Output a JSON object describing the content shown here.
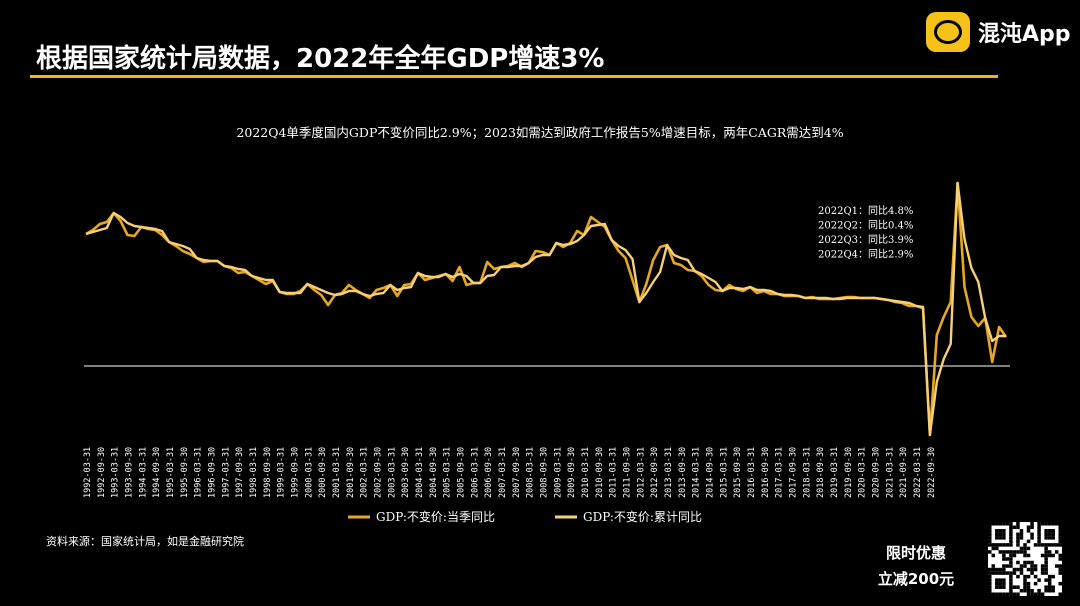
{
  "header": {
    "title": "根据国家统计局数据，2022年全年GDP增速3%"
  },
  "brand": {
    "name": "混沌App",
    "logo_icon": "chat-bubble-icon"
  },
  "footer": {
    "source": "资料来源：国家统计局，如是金融研究院",
    "promo_line1": "限时优惠",
    "promo_line2": "立减200元"
  },
  "colors": {
    "background": "#000000",
    "accent": "#f2b51d",
    "series_quarter": "#e6a822",
    "series_cumulative": "#f7cf76",
    "baseline": "#ffffff"
  },
  "chart_data": {
    "type": "line",
    "title": "2022Q4单季度国内GDP不变价同比2.9%；2023如需达到政府工作报告5%增速目标，两年CAGR需达到4%",
    "xlabel": "",
    "ylabel": "",
    "grid": false,
    "legend_position": "bottom-center",
    "annotations": [
      "2022Q1：同比4.8%",
      "2022Q2：同比0.4%",
      "2022Q3：同比3.9%",
      "2022Q4：同比2.9%"
    ],
    "x_tick_labels": [
      "1992-03-31",
      "1992-09-30",
      "1993-03-31",
      "1993-09-30",
      "1994-03-31",
      "1994-09-30",
      "1995-03-31",
      "1995-09-30",
      "1996-03-31",
      "1996-09-30",
      "1997-03-31",
      "1997-09-30",
      "1998-03-31",
      "1998-09-30",
      "1999-03-31",
      "1999-09-30",
      "2000-03-31",
      "2000-09-30",
      "2001-03-31",
      "2001-09-30",
      "2002-03-31",
      "2002-09-30",
      "2003-03-31",
      "2003-09-30",
      "2004-03-31",
      "2004-09-30",
      "2005-03-31",
      "2005-09-30",
      "2006-03-31",
      "2006-09-30",
      "2007-03-31",
      "2007-09-30",
      "2008-03-31",
      "2008-09-30",
      "2009-03-31",
      "2009-09-30",
      "2010-03-31",
      "2010-09-30",
      "2011-03-31",
      "2011-09-30",
      "2012-03-31",
      "2012-09-30",
      "2013-03-31",
      "2013-09-30",
      "2014-03-31",
      "2014-09-30",
      "2015-03-31",
      "2015-09-30",
      "2016-03-31",
      "2016-09-30",
      "2017-03-31",
      "2017-09-30",
      "2018-03-31",
      "2018-09-30",
      "2019-03-31",
      "2019-09-30",
      "2020-03-31",
      "2020-09-30",
      "2021-03-31",
      "2021-09-30",
      "2022-03-31",
      "2022-09-30"
    ],
    "ylim": [
      -7,
      20
    ],
    "series": [
      {
        "name": "GDP:不变价:当季同比",
        "values": [
          13.2,
          13.6,
          14.2,
          14.4,
          15.3,
          14.5,
          13.1,
          13.0,
          13.9,
          13.7,
          13.6,
          13.1,
          12.4,
          12.0,
          11.5,
          11.2,
          10.8,
          10.4,
          10.5,
          10.5,
          10.0,
          9.8,
          9.3,
          9.4,
          9.0,
          8.6,
          8.2,
          8.5,
          7.4,
          7.2,
          7.2,
          7.5,
          8.2,
          7.6,
          7.1,
          6.1,
          7.1,
          7.3,
          8.1,
          7.6,
          7.2,
          6.8,
          7.6,
          7.8,
          8.1,
          7.0,
          8.1,
          8.2,
          9.3,
          8.6,
          8.8,
          9.0,
          9.2,
          8.5,
          9.9,
          8.1,
          8.3,
          8.3,
          10.4,
          9.7,
          9.9,
          10.0,
          10.3,
          9.9,
          10.3,
          11.5,
          11.4,
          11.1,
          12.3,
          11.9,
          12.3,
          13.5,
          13.1,
          14.9,
          14.4,
          13.9,
          12.6,
          11.5,
          10.8,
          8.6,
          6.4,
          8.2,
          10.6,
          11.9,
          12.1,
          10.3,
          10.1,
          9.6,
          9.5,
          9.0,
          8.1,
          7.6,
          7.5,
          8.1,
          7.7,
          7.5,
          7.9,
          7.3,
          7.5,
          7.2,
          7.2,
          7.0,
          7.0,
          7.0,
          6.8,
          6.9,
          6.7,
          6.7,
          6.7,
          6.8,
          6.9,
          6.9,
          6.8,
          6.8,
          6.8,
          6.7,
          6.6,
          6.4,
          6.3,
          6.0,
          6.0,
          5.8,
          -6.9,
          3.1,
          4.9,
          6.4,
          18.3,
          7.9,
          4.9,
          4.0,
          4.8,
          0.4,
          3.9,
          2.9
        ]
      },
      {
        "name": "GDP:不变价:累计同比",
        "values": [
          13.2,
          13.4,
          13.6,
          13.8,
          15.3,
          14.9,
          14.3,
          14.0,
          13.9,
          13.8,
          13.7,
          13.5,
          12.4,
          12.2,
          12.0,
          11.7,
          10.8,
          10.6,
          10.5,
          10.5,
          10.0,
          9.9,
          9.7,
          9.6,
          9.0,
          8.8,
          8.6,
          8.6,
          7.4,
          7.3,
          7.3,
          7.3,
          8.2,
          7.9,
          7.6,
          7.3,
          7.1,
          7.2,
          7.5,
          7.5,
          7.2,
          7.0,
          7.2,
          7.3,
          8.1,
          7.6,
          7.8,
          7.9,
          9.3,
          9.0,
          8.9,
          8.9,
          9.2,
          8.9,
          9.2,
          9.0,
          8.3,
          8.3,
          9.0,
          9.1,
          9.9,
          9.9,
          10.0,
          10.0,
          10.3,
          10.9,
          11.1,
          11.1,
          12.3,
          12.1,
          12.2,
          12.5,
          13.1,
          14.0,
          14.1,
          14.2,
          12.6,
          12.0,
          11.6,
          10.7,
          6.4,
          7.3,
          8.4,
          9.4,
          12.1,
          11.1,
          10.8,
          10.6,
          9.5,
          9.2,
          8.8,
          8.4,
          7.5,
          7.8,
          7.8,
          7.7,
          7.9,
          7.6,
          7.6,
          7.5,
          7.2,
          7.1,
          7.1,
          7.0,
          6.8,
          6.8,
          6.8,
          6.8,
          6.7,
          6.7,
          6.8,
          6.8,
          6.8,
          6.8,
          6.8,
          6.7,
          6.6,
          6.5,
          6.4,
          6.3,
          6.0,
          5.9,
          -6.9,
          -1.6,
          0.7,
          2.2,
          18.3,
          12.7,
          9.8,
          8.4,
          4.8,
          2.5,
          3.0,
          3.0
        ]
      }
    ]
  }
}
